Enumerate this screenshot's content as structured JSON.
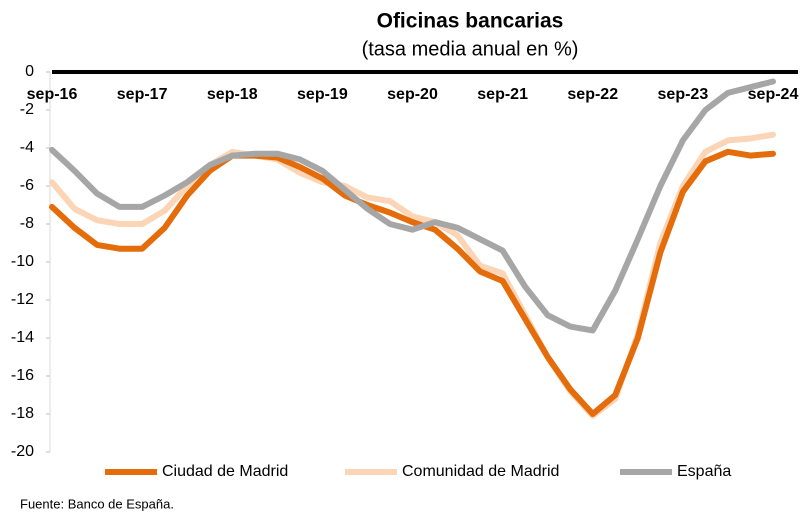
{
  "chart_data": {
    "type": "line",
    "title": "Oficinas bancarias",
    "subtitle": "(tasa media anual en %)",
    "source": "Fuente: Banco de España.",
    "categories": [
      "sep-16",
      null,
      null,
      null,
      "sep-17",
      null,
      null,
      null,
      "sep-18",
      null,
      null,
      null,
      "sep-19",
      null,
      null,
      null,
      "sep-20",
      null,
      null,
      null,
      "sep-21",
      null,
      null,
      null,
      "sep-22",
      null,
      null,
      null,
      "sep-23",
      null,
      null,
      null,
      "sep-24"
    ],
    "series": [
      {
        "name": "Ciudad de Madrid",
        "color": "#e46c0a",
        "values": [
          -7.1,
          -8.2,
          -9.1,
          -9.3,
          -9.3,
          -8.2,
          -6.5,
          -5.2,
          -4.4,
          -4.4,
          -4.5,
          -5.0,
          -5.6,
          -6.5,
          -7.0,
          -7.4,
          -7.9,
          -8.3,
          -9.3,
          -10.5,
          -11.0,
          -13.0,
          -15.0,
          -16.7,
          -18.0,
          -17.0,
          -14.0,
          -9.5,
          -6.3,
          -4.7,
          -4.2,
          -4.4,
          -4.3
        ]
      },
      {
        "name": "Comunidad de Madrid",
        "color": "#fbd5b5",
        "values": [
          -5.8,
          -7.2,
          -7.8,
          -8.0,
          -8.0,
          -7.3,
          -6.0,
          -4.9,
          -4.2,
          -4.4,
          -4.6,
          -5.3,
          -5.8,
          -6.0,
          -6.6,
          -6.8,
          -7.6,
          -7.9,
          -8.6,
          -10.2,
          -10.6,
          -12.8,
          -15.0,
          -16.8,
          -18.1,
          -17.2,
          -13.8,
          -9.0,
          -6.0,
          -4.2,
          -3.6,
          -3.5,
          -3.3
        ]
      },
      {
        "name": "España",
        "color": "#a6a6a6",
        "values": [
          -4.1,
          -5.2,
          -6.4,
          -7.1,
          -7.1,
          -6.5,
          -5.8,
          -4.9,
          -4.4,
          -4.3,
          -4.3,
          -4.6,
          -5.2,
          -6.2,
          -7.2,
          -8.0,
          -8.3,
          -7.9,
          -8.2,
          -8.8,
          -9.4,
          -11.3,
          -12.8,
          -13.4,
          -13.6,
          -11.5,
          -8.8,
          -6.0,
          -3.6,
          -2.0,
          -1.1,
          -0.8,
          -0.5
        ]
      }
    ],
    "ylim": [
      -20,
      0
    ],
    "yticks": [
      0,
      -2,
      -4,
      -6,
      -8,
      -10,
      -12,
      -14,
      -16,
      -18,
      -20
    ],
    "legend": "bottom"
  }
}
